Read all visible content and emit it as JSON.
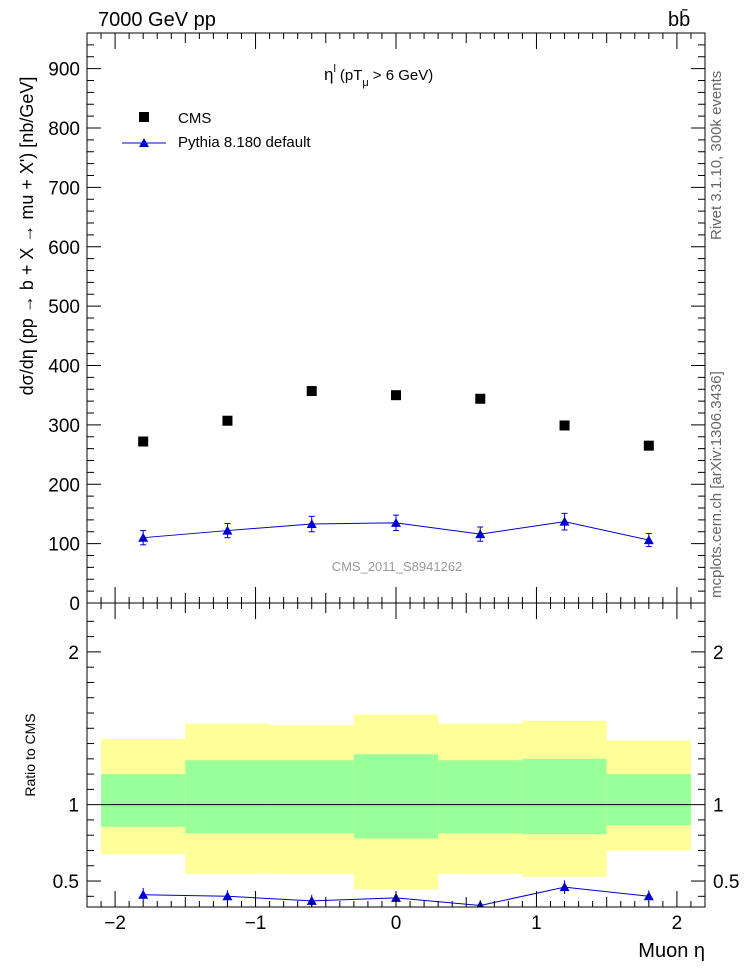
{
  "header": {
    "energy_label": "7000 GeV pp",
    "process_label": "bb̄"
  },
  "side_text": {
    "rivet": "Rivet 3.1.10,  300k events",
    "mcplots": "mcplots.cern.ch [arXiv:1306.3436]"
  },
  "main_panel": {
    "title_eta": "η",
    "title_sup": "l",
    "title_mid": "(pT",
    "title_sub": "μ",
    "title_tail": ">  6 GeV)",
    "ylabel": "dσ/dη (pp → b + X  → mu + X') [nb/GeV]",
    "watermark": "CMS_2011_S8941262",
    "legend": [
      {
        "name": "CMS",
        "marker": "square",
        "color": "#000000"
      },
      {
        "name": "Pythia 8.180 default",
        "marker": "triangle",
        "color": "#0000cc"
      }
    ]
  },
  "ratio_panel": {
    "ylabel": "Ratio to CMS"
  },
  "xaxis": {
    "label": "Muon η"
  },
  "colors": {
    "band_outer": "#ffff99",
    "band_inner": "#99ff99",
    "mc": "#0000cc",
    "data": "#000000"
  },
  "chart_data": {
    "type": "scatter",
    "x": [
      -1.8,
      -1.2,
      -0.6,
      0.0,
      0.6,
      1.2,
      1.8
    ],
    "bin_edges": [
      -2.1,
      -1.5,
      -0.9,
      -0.3,
      0.3,
      0.9,
      1.5,
      2.1
    ],
    "xlim": [
      -2.2,
      2.2
    ],
    "xticks": [
      -2,
      -1,
      0,
      1,
      2
    ],
    "xtick_labels": [
      "−2",
      "−1",
      "0",
      "1",
      "2"
    ],
    "main_ylim": [
      0,
      960
    ],
    "main_yticks": [
      0,
      100,
      200,
      300,
      400,
      500,
      600,
      700,
      800,
      900
    ],
    "ratio_ylim": [
      0.33,
      2.32
    ],
    "ratio_yticks": [
      0.5,
      1,
      2
    ],
    "ratio_ytick_labels": [
      "0.5",
      "1",
      "2"
    ],
    "series": [
      {
        "name": "CMS",
        "values": [
          272,
          307,
          357,
          350,
          344,
          299,
          265
        ]
      },
      {
        "name": "Pythia 8.180 default",
        "values": [
          110,
          122,
          133,
          135,
          116,
          137,
          106
        ],
        "errors": [
          12,
          12,
          13,
          13,
          12,
          14,
          11
        ]
      }
    ],
    "ratio": {
      "mc_values": [
        0.41,
        0.4,
        0.37,
        0.39,
        0.34,
        0.46,
        0.4
      ],
      "mc_errors": [
        0.045,
        0.04,
        0.04,
        0.04,
        0.035,
        0.045,
        0.04
      ],
      "band_inner_low": [
        0.855,
        0.812,
        0.812,
        0.778,
        0.812,
        0.806,
        0.866
      ],
      "band_inner_high": [
        1.2,
        1.29,
        1.29,
        1.33,
        1.29,
        1.3,
        1.2
      ],
      "band_outer_low": [
        0.675,
        0.548,
        0.548,
        0.445,
        0.548,
        0.528,
        0.7
      ],
      "band_outer_high": [
        1.43,
        1.53,
        1.52,
        1.59,
        1.53,
        1.55,
        1.42
      ]
    }
  }
}
